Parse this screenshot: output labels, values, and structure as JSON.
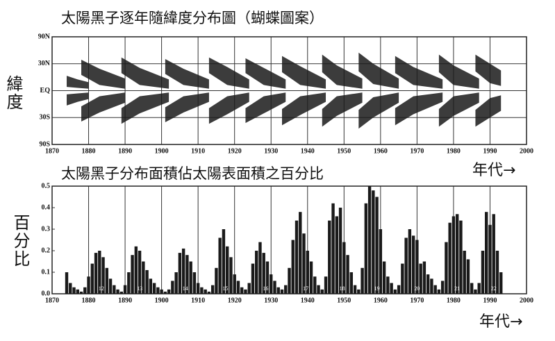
{
  "chart_data": [
    {
      "type": "band",
      "title": "太陽黑子逐年隨緯度分布圖（蝴蝶圖案）",
      "y_label": "緯度",
      "x_label": "年代→",
      "yscale": "sine",
      "grid": "both",
      "color": "#1a1a1a",
      "xlim": [
        1870,
        2000
      ],
      "xticks": [
        1870,
        1880,
        1890,
        1900,
        1910,
        1920,
        1930,
        1940,
        1950,
        1960,
        1970,
        1980,
        1990,
        2000
      ],
      "ylim": [
        -90,
        90
      ],
      "yticks": [
        {
          "value": 90,
          "label": "90N"
        },
        {
          "value": 30,
          "label": "30N"
        },
        {
          "value": 0,
          "label": "EQ"
        },
        {
          "value": -30,
          "label": "30S"
        },
        {
          "value": -90,
          "label": "90S"
        }
      ],
      "wings": [
        {
          "x": [
            1874,
            1877,
            1880
          ],
          "lat_hi": [
            16,
            12,
            9
          ],
          "lat_lo": [
            4,
            3,
            2
          ]
        },
        {
          "x": [
            1878,
            1883,
            1890
          ],
          "lat_hi": [
            35,
            24,
            13
          ],
          "lat_lo": [
            17,
            6,
            2
          ]
        },
        {
          "x": [
            1889,
            1894,
            1902
          ],
          "lat_hi": [
            38,
            25,
            12
          ],
          "lat_lo": [
            19,
            6,
            2
          ]
        },
        {
          "x": [
            1901,
            1906,
            1913
          ],
          "lat_hi": [
            36,
            24,
            12
          ],
          "lat_lo": [
            18,
            6,
            2
          ]
        },
        {
          "x": [
            1913,
            1918,
            1924
          ],
          "lat_hi": [
            38,
            26,
            12
          ],
          "lat_lo": [
            19,
            6,
            2
          ]
        },
        {
          "x": [
            1923,
            1928,
            1934
          ],
          "lat_hi": [
            37,
            25,
            12
          ],
          "lat_lo": [
            19,
            6,
            2
          ]
        },
        {
          "x": [
            1933,
            1938,
            1945
          ],
          "lat_hi": [
            40,
            27,
            12
          ],
          "lat_lo": [
            20,
            6,
            2
          ]
        },
        {
          "x": [
            1944,
            1948,
            1955
          ],
          "lat_hi": [
            42,
            28,
            13
          ],
          "lat_lo": [
            20,
            6,
            2
          ]
        },
        {
          "x": [
            1954,
            1958,
            1965
          ],
          "lat_hi": [
            45,
            30,
            13
          ],
          "lat_lo": [
            21,
            7,
            2
          ]
        },
        {
          "x": [
            1964,
            1969,
            1977
          ],
          "lat_hi": [
            40,
            26,
            12
          ],
          "lat_lo": [
            19,
            6,
            2
          ]
        },
        {
          "x": [
            1976,
            1980,
            1987
          ],
          "lat_hi": [
            42,
            28,
            13
          ],
          "lat_lo": [
            20,
            6,
            2
          ]
        },
        {
          "x": [
            1986,
            1990,
            1993
          ],
          "lat_hi": [
            42,
            30,
            22
          ],
          "lat_lo": [
            21,
            8,
            5
          ]
        }
      ]
    },
    {
      "type": "bar",
      "title": "太陽黑子分布面積佔太陽表面積之百分比",
      "y_label": "百分比",
      "x_label": "年代→",
      "grid": "x",
      "color": "#1a1a1a",
      "xlim": [
        1870,
        2000
      ],
      "xticks": [
        1870,
        1880,
        1890,
        1900,
        1910,
        1920,
        1930,
        1940,
        1950,
        1960,
        1970,
        1980,
        1990,
        2000
      ],
      "ylim": [
        0,
        0.5
      ],
      "yticks": [
        {
          "value": 0,
          "label": "0.0"
        },
        0.1,
        0.2,
        0.3,
        0.4,
        0.5
      ],
      "x": [
        1874,
        1875,
        1876,
        1877,
        1878,
        1879,
        1880,
        1881,
        1882,
        1883,
        1884,
        1885,
        1886,
        1887,
        1888,
        1889,
        1890,
        1891,
        1892,
        1893,
        1894,
        1895,
        1896,
        1897,
        1898,
        1899,
        1900,
        1901,
        1902,
        1903,
        1904,
        1905,
        1906,
        1907,
        1908,
        1909,
        1910,
        1911,
        1912,
        1913,
        1914,
        1915,
        1916,
        1917,
        1918,
        1919,
        1920,
        1921,
        1922,
        1923,
        1924,
        1925,
        1926,
        1927,
        1928,
        1929,
        1930,
        1931,
        1932,
        1933,
        1934,
        1935,
        1936,
        1937,
        1938,
        1939,
        1940,
        1941,
        1942,
        1943,
        1944,
        1945,
        1946,
        1947,
        1948,
        1949,
        1950,
        1951,
        1952,
        1953,
        1954,
        1955,
        1956,
        1957,
        1958,
        1959,
        1960,
        1961,
        1962,
        1963,
        1964,
        1965,
        1966,
        1967,
        1968,
        1969,
        1970,
        1971,
        1972,
        1973,
        1974,
        1975,
        1976,
        1977,
        1978,
        1979,
        1980,
        1981,
        1982,
        1983,
        1984,
        1985,
        1986,
        1987,
        1988,
        1989,
        1990,
        1991,
        1992,
        1993
      ],
      "values": [
        0.1,
        0.05,
        0.03,
        0.02,
        0.01,
        0.03,
        0.08,
        0.14,
        0.19,
        0.2,
        0.17,
        0.12,
        0.07,
        0.04,
        0.02,
        0.01,
        0.04,
        0.1,
        0.18,
        0.22,
        0.2,
        0.15,
        0.11,
        0.07,
        0.05,
        0.03,
        0.02,
        0.01,
        0.02,
        0.06,
        0.1,
        0.19,
        0.21,
        0.18,
        0.15,
        0.1,
        0.05,
        0.03,
        0.02,
        0.01,
        0.04,
        0.12,
        0.26,
        0.3,
        0.22,
        0.17,
        0.09,
        0.06,
        0.03,
        0.02,
        0.05,
        0.14,
        0.2,
        0.24,
        0.19,
        0.15,
        0.09,
        0.06,
        0.03,
        0.02,
        0.04,
        0.12,
        0.25,
        0.34,
        0.38,
        0.28,
        0.2,
        0.15,
        0.08,
        0.04,
        0.02,
        0.08,
        0.34,
        0.42,
        0.36,
        0.4,
        0.24,
        0.18,
        0.1,
        0.04,
        0.02,
        0.12,
        0.42,
        0.5,
        0.48,
        0.45,
        0.3,
        0.15,
        0.08,
        0.05,
        0.02,
        0.04,
        0.14,
        0.26,
        0.3,
        0.27,
        0.25,
        0.14,
        0.15,
        0.09,
        0.07,
        0.04,
        0.02,
        0.06,
        0.24,
        0.33,
        0.36,
        0.37,
        0.34,
        0.2,
        0.16,
        0.05,
        0.02,
        0.05,
        0.2,
        0.38,
        0.32,
        0.37,
        0.2,
        0.1
      ],
      "cycles": {
        "x": [
          1883.5,
          1894,
          1906.5,
          1917.5,
          1928.5,
          1939.5,
          1949.5,
          1959,
          1970,
          1981,
          1991
        ],
        "labels": [
          12,
          13,
          14,
          15,
          16,
          17,
          18,
          19,
          20,
          21,
          22
        ]
      }
    }
  ]
}
